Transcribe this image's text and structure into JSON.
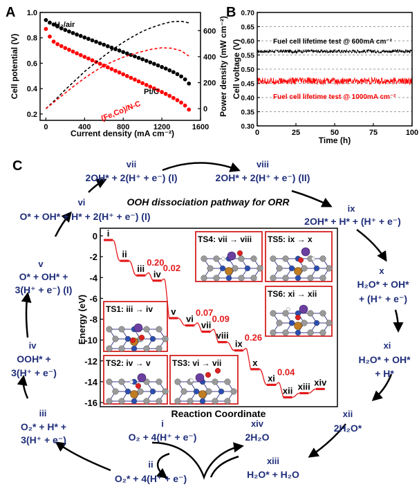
{
  "panels": {
    "a": "A",
    "b": "B",
    "c": "C"
  },
  "chart_data": [
    {
      "id": "A",
      "type": "line",
      "xlabel": "Current density (mA cm⁻²)",
      "ylabel": "Cell potential (V)",
      "y2label": "Power density (mW cm⁻²)",
      "xlim": [
        -60,
        1600
      ],
      "ylim": [
        0.15,
        1.0
      ],
      "y2lim": [
        -90,
        740
      ],
      "xticks": [
        0,
        400,
        800,
        1200,
        1600
      ],
      "yticks": [
        0.2,
        0.4,
        0.6,
        0.8,
        1.0
      ],
      "y2ticks": [
        0,
        200,
        400,
        600
      ],
      "xtick_labels": [
        "0",
        "400",
        "800",
        "1200",
        "1600"
      ],
      "ytick_labels": [
        "0.2",
        "0.4",
        "0.6",
        "0.8",
        "1.0"
      ],
      "y2tick_labels": [
        "0",
        "200",
        "400",
        "600"
      ],
      "annotations": [
        "H₂/air",
        "Pt/C",
        "(Fe,Co)/N-C"
      ],
      "series": [
        {
          "name": "Pt/C",
          "color": "#000000",
          "axis": "left",
          "style": "dots",
          "x": [
            0,
            40,
            80,
            120,
            160,
            200,
            240,
            280,
            320,
            360,
            400,
            440,
            480,
            520,
            560,
            600,
            640,
            680,
            720,
            760,
            800,
            840,
            880,
            920,
            960,
            1000,
            1040,
            1080,
            1120,
            1160,
            1200,
            1240,
            1280,
            1320,
            1360,
            1400,
            1440,
            1480
          ],
          "y": [
            0.94,
            0.92,
            0.905,
            0.89,
            0.875,
            0.862,
            0.85,
            0.838,
            0.826,
            0.815,
            0.803,
            0.792,
            0.78,
            0.769,
            0.757,
            0.746,
            0.734,
            0.723,
            0.711,
            0.7,
            0.688,
            0.677,
            0.665,
            0.654,
            0.642,
            0.631,
            0.619,
            0.607,
            0.595,
            0.583,
            0.57,
            0.558,
            0.544,
            0.53,
            0.514,
            0.496,
            0.473,
            0.44
          ]
        },
        {
          "name": "(Fe,Co)/N-C",
          "color": "#ff0000",
          "axis": "left",
          "style": "dots",
          "x": [
            0,
            40,
            80,
            120,
            160,
            200,
            240,
            280,
            320,
            360,
            400,
            440,
            480,
            520,
            560,
            600,
            640,
            680,
            720,
            760,
            800,
            840,
            880,
            920,
            960,
            1000,
            1040,
            1080,
            1120,
            1160,
            1200,
            1240,
            1280,
            1320,
            1360,
            1400,
            1440,
            1480
          ],
          "y": [
            0.87,
            0.81,
            0.77,
            0.75,
            0.735,
            0.72,
            0.706,
            0.692,
            0.678,
            0.664,
            0.65,
            0.637,
            0.623,
            0.609,
            0.596,
            0.582,
            0.568,
            0.554,
            0.54,
            0.527,
            0.513,
            0.499,
            0.485,
            0.471,
            0.457,
            0.443,
            0.429,
            0.415,
            0.401,
            0.387,
            0.373,
            0.358,
            0.343,
            0.326,
            0.309,
            0.29,
            0.267,
            0.235
          ]
        },
        {
          "name": "Pt/C power",
          "color": "#000000",
          "axis": "right",
          "style": "dashed",
          "x": [
            0,
            100,
            200,
            300,
            400,
            500,
            600,
            700,
            800,
            900,
            1000,
            1100,
            1200,
            1300,
            1400,
            1480
          ],
          "y": [
            0,
            70,
            145,
            215,
            285,
            345,
            405,
            460,
            510,
            555,
            595,
            625,
            650,
            668,
            672,
            660
          ]
        },
        {
          "name": "(Fe,Co)/N-C power",
          "color": "#ff0000",
          "axis": "right",
          "style": "dashed",
          "x": [
            0,
            100,
            200,
            300,
            400,
            500,
            600,
            700,
            800,
            900,
            1000,
            1100,
            1200,
            1300,
            1400,
            1480
          ],
          "y": [
            0,
            60,
            120,
            180,
            235,
            285,
            330,
            365,
            395,
            420,
            440,
            458,
            468,
            465,
            445,
            405
          ]
        }
      ]
    },
    {
      "id": "B",
      "type": "line",
      "xlabel": "Time (h)",
      "ylabel": "Cell voltage (V)",
      "xlim": [
        0,
        100
      ],
      "ylim": [
        0.3,
        0.7
      ],
      "xticks": [
        0,
        25,
        50,
        75,
        100
      ],
      "yticks": [
        0.3,
        0.35,
        0.4,
        0.45,
        0.5,
        0.55,
        0.6,
        0.65,
        0.7
      ],
      "xtick_labels": [
        "0",
        "25",
        "50",
        "75",
        "100"
      ],
      "ytick_labels": [
        "0.30",
        "0.35",
        "0.40",
        "0.45",
        "0.50",
        "0.55",
        "0.60",
        "0.65",
        "0.70"
      ],
      "grid": "horizontal-dashed",
      "series": [
        {
          "label": "Fuel cell lifetime test @ 600mA cm⁻²",
          "color": "#000000",
          "mean": 0.563,
          "amplitude": 0.006
        },
        {
          "label": "Fuel cell lifetime test @ 1000mA cm⁻²",
          "color": "#ff0000",
          "mean": 0.458,
          "amplitude": 0.012
        }
      ]
    },
    {
      "id": "C-inset",
      "type": "line",
      "xlabel": "Reaction Coordinate",
      "ylabel": "Energy (eV)",
      "ylim": [
        -17,
        1
      ],
      "yticks": [
        0,
        -2,
        -4,
        -6,
        -8,
        -10,
        -12,
        -14,
        -16
      ],
      "ytick_labels": [
        "0",
        "-2",
        "-4",
        "-6",
        "-8",
        "-10",
        "-12",
        "-14",
        "-16"
      ],
      "states": [
        "i",
        "ii",
        "iii",
        "iv",
        "v",
        "vi",
        "vii",
        "viii",
        "ix",
        "x",
        "xi",
        "xii",
        "xiii",
        "xiv"
      ],
      "energies": [
        -0.4,
        -2.4,
        -3.8,
        -4.3,
        -7.9,
        -8.6,
        -9.2,
        -10.2,
        -11.0,
        -12.8,
        -14.3,
        -15.5,
        -15.1,
        -14.7
      ],
      "barriers": [
        {
          "label": "0.20",
          "after_state": 2
        },
        {
          "label": "0.02",
          "after_state": 3
        },
        {
          "label": "0.07",
          "after_state": 5
        },
        {
          "label": "0.09",
          "after_state": 6
        },
        {
          "label": "0.26",
          "after_state": 8
        },
        {
          "label": "0.04",
          "after_state": 10
        }
      ],
      "ts_labels": [
        "TS1: iii → iv",
        "TS2: iv → v",
        "TS3: vi → vii",
        "TS4: vii → viii",
        "TS5: ix → x",
        "TS6: xi → xii"
      ]
    }
  ],
  "cycle": {
    "title": "OOH dissociation pathway for ORR",
    "vii_num": "vii",
    "vii_text": "2OH* + 2(H⁺ + e⁻) (I)",
    "viii_num": "viii",
    "viii_text": "2OH* + 2(H⁺ + e⁻) (II)",
    "vi_num": "vi",
    "vi_text": "O* + OH* + H* + 2(H⁺ + e⁻) (I)",
    "ix_num": "ix",
    "ix_text": "2OH* + H* + (H⁺ + e⁻)",
    "v_num": "v",
    "v_text1": "O* + OH* +",
    "v_text2": "3(H⁺ + e⁻) (I)",
    "x_num": "x",
    "x_text1": "H₂O* + OH*",
    "x_text2": "+ (H⁺ + e⁻)",
    "iv_num": "iv",
    "iv_text1": "OOH* +",
    "iv_text2": "3(H⁺ + e⁻)",
    "xi_num": "xi",
    "xi_text1": "H₂O* + OH*",
    "xi_text2": "+ H*",
    "iii_num": "iii",
    "iii_text1": "O₂* + H* +",
    "iii_text2": "3(H⁺ + e⁻)",
    "xii_num": "xii",
    "xii_text": "2H₂O*",
    "i_num": "i",
    "i_text": "O₂ + 4(H⁺ + e⁻)",
    "xiv_num": "xiv",
    "xiv_text": "2H₂O",
    "ii_num": "ii",
    "ii_text": "O₂* + 4(H⁺ + e⁻)",
    "xiii_num": "xiii",
    "xiii_text": "H₂O* + H₂O"
  },
  "colors": {
    "navy": "#1f2e7a",
    "red": "#e41a1c",
    "black": "#000000",
    "frame_red": "#d42020"
  }
}
